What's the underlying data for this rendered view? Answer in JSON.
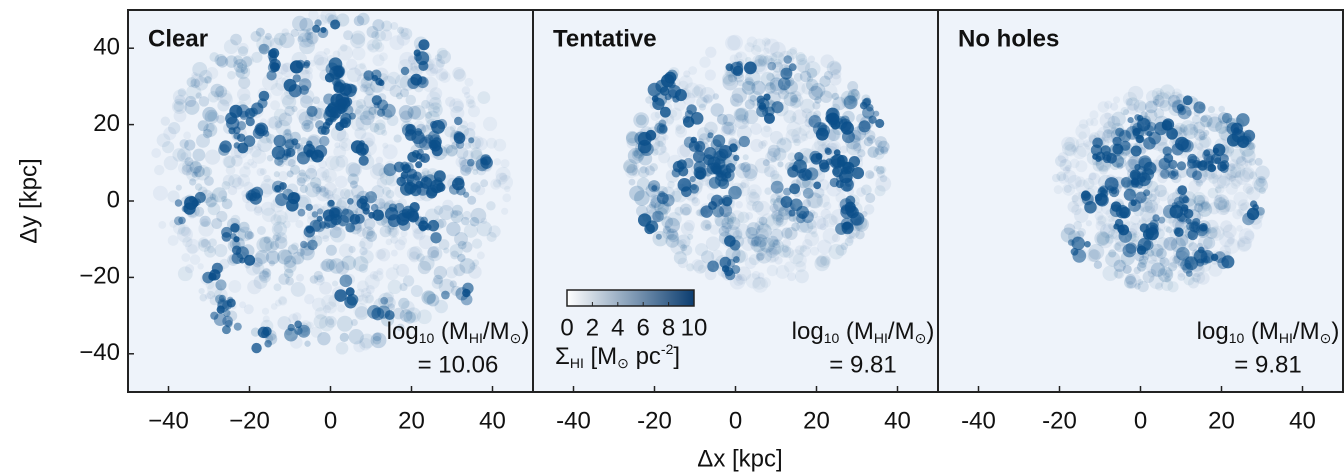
{
  "figure": {
    "xlabel": "Δx [kpc]",
    "ylabel": "Δy [kpc]",
    "colorbar": {
      "ticks": [
        0,
        2,
        4,
        6,
        8,
        10
      ],
      "lim": [
        0,
        10
      ],
      "color": "#0b3d70",
      "label": [
        "Σ",
        "HI",
        " [M",
        "⊙",
        " pc",
        "-2",
        "]"
      ]
    }
  },
  "chart_data": [
    {
      "type": "map",
      "title": "Clear",
      "xlim": [
        -50,
        50
      ],
      "ylim": [
        -50,
        50
      ],
      "xticks": [
        {
          "value": -40,
          "label": "−40"
        },
        {
          "value": -20,
          "label": "−20"
        },
        0,
        20,
        40
      ],
      "yticks": [
        {
          "value": -40,
          "label": "−40"
        },
        {
          "value": -20,
          "label": "−20"
        },
        0,
        20,
        40
      ],
      "color": "#0b4f8a",
      "annotation": [
        "log",
        "10",
        " (M",
        "HI",
        "/M",
        "⊙",
        ")",
        "= 10.06"
      ]
    },
    {
      "type": "map",
      "title": "Tentative",
      "xlim": [
        -50,
        50
      ],
      "ylim": [
        -50,
        50
      ],
      "xticks": [
        {
          "value": -40,
          "label": "-40"
        },
        {
          "value": -20,
          "label": "-20"
        },
        0,
        20,
        40
      ],
      "color": "#0b4f8a",
      "annotation": [
        "log",
        "10",
        " (M",
        "HI",
        "/M",
        "⊙",
        ")",
        "= 9.81"
      ]
    },
    {
      "type": "map",
      "title": "No holes",
      "xlim": [
        -50,
        50
      ],
      "ylim": [
        -50,
        50
      ],
      "xticks": [
        {
          "value": -40,
          "label": "-40"
        },
        {
          "value": -20,
          "label": "-20"
        },
        0,
        20,
        40
      ],
      "color": "#0b4f8a",
      "annotation": [
        "log",
        "10",
        " (M",
        "HI",
        "/M",
        "⊙",
        ")",
        "= 9.81"
      ]
    }
  ]
}
